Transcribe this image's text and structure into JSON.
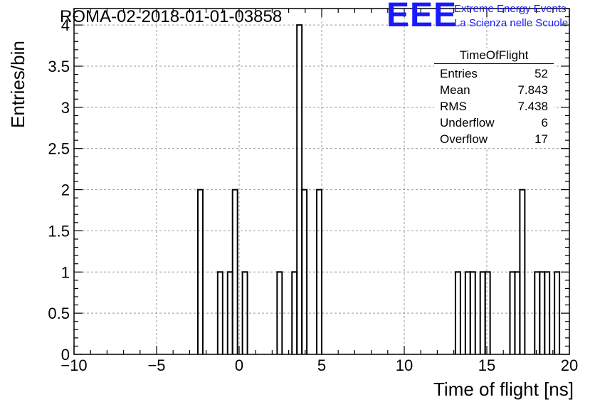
{
  "title": "ROMA-02-2018-01-01-03858",
  "logo": {
    "mark": "EEE",
    "line1": "Extreme Energy Events",
    "line2": "La Scienza nelle Scuole",
    "color": "#1a1aff"
  },
  "stats": {
    "title": "TimeOfFlight",
    "rows": [
      {
        "label": "Entries",
        "value": "52"
      },
      {
        "label": "Mean",
        "value": "7.843"
      },
      {
        "label": "RMS",
        "value": "7.438"
      },
      {
        "label": "Underflow",
        "value": "6"
      },
      {
        "label": "Overflow",
        "value": "17"
      }
    ]
  },
  "chart_data": {
    "type": "bar",
    "title": "ROMA-02-2018-01-01-03858",
    "xlabel": "Time of flight [ns]",
    "ylabel": "Entries/bin",
    "xlim": [
      -10,
      20
    ],
    "ylim": [
      0,
      4.2
    ],
    "bin_width": 0.3,
    "xticks": [
      -10,
      -5,
      0,
      5,
      10,
      15,
      20
    ],
    "xtick_labels": [
      "−10",
      "−5",
      "0",
      "5",
      "10",
      "15",
      "20"
    ],
    "yticks": [
      0,
      0.5,
      1,
      1.5,
      2,
      2.5,
      3,
      3.5,
      4
    ],
    "ytick_labels": [
      "0",
      "0.5",
      "1",
      "1.5",
      "2",
      "2.5",
      "3",
      "3.5",
      "4"
    ],
    "grid": true,
    "bins": [
      {
        "x": -2.5,
        "count": 2
      },
      {
        "x": -1.3,
        "count": 1
      },
      {
        "x": -0.7,
        "count": 1
      },
      {
        "x": -0.4,
        "count": 2
      },
      {
        "x": 0.2,
        "count": 1
      },
      {
        "x": 2.3,
        "count": 1
      },
      {
        "x": 3.2,
        "count": 1
      },
      {
        "x": 3.5,
        "count": 4
      },
      {
        "x": 3.8,
        "count": 2
      },
      {
        "x": 4.7,
        "count": 2
      },
      {
        "x": 13.1,
        "count": 1
      },
      {
        "x": 13.7,
        "count": 1
      },
      {
        "x": 14.0,
        "count": 1
      },
      {
        "x": 14.6,
        "count": 1
      },
      {
        "x": 14.9,
        "count": 1
      },
      {
        "x": 16.4,
        "count": 1
      },
      {
        "x": 16.7,
        "count": 1
      },
      {
        "x": 17.0,
        "count": 2
      },
      {
        "x": 17.9,
        "count": 1
      },
      {
        "x": 18.2,
        "count": 1
      },
      {
        "x": 18.5,
        "count": 1
      },
      {
        "x": 19.1,
        "count": 1
      }
    ]
  }
}
